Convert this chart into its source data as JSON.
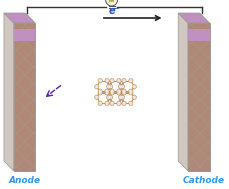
{
  "fig_width": 2.29,
  "fig_height": 1.89,
  "dpi": 100,
  "bg_color": "#ffffff",
  "anode_label": "Anode",
  "cathode_label": "Cathode",
  "electrode_front_color": "#b08878",
  "electrode_side_color": "#d0c8c0",
  "electrode_top_color": "#c8b8a8",
  "electrode_stripe_color": "#c090c0",
  "electrode_label_color": "#3399ee",
  "electron_label": "e⁻",
  "electron_color": "#2255cc",
  "arrow_color": "#222222",
  "wire_color": "#333333",
  "molecule_node_color": "#f0d8b8",
  "molecule_edge_color": "#c09060",
  "molecule_node_inner": "#e8e8f8",
  "dashed_arrow_color": "#5522aa",
  "bulb_color": "#f5f5e0",
  "bulb_edge_color": "#555555"
}
